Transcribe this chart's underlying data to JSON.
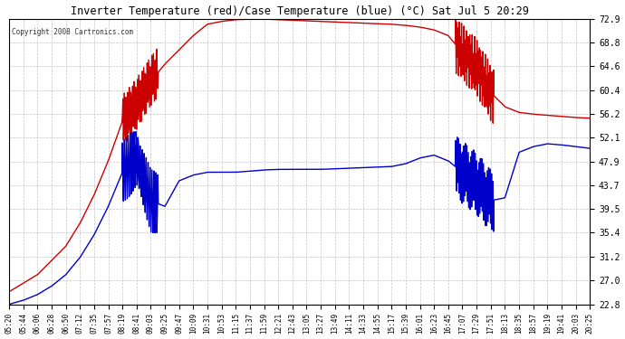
{
  "title": "Inverter Temperature (red)/Case Temperature (blue) (°C) Sat Jul 5 20:29",
  "copyright": "Copyright 2008 Cartronics.com",
  "background_color": "#ffffff",
  "plot_bg_color": "#ffffff",
  "grid_color": "#bbbbbb",
  "red_color": "#cc0000",
  "blue_color": "#0000cc",
  "ylim": [
    22.8,
    72.9
  ],
  "yticks": [
    22.8,
    27.0,
    31.2,
    35.4,
    39.5,
    43.7,
    47.9,
    52.1,
    56.2,
    60.4,
    64.6,
    68.8,
    72.9
  ],
  "xtick_labels": [
    "05:20",
    "05:44",
    "06:06",
    "06:28",
    "06:50",
    "07:12",
    "07:35",
    "07:57",
    "08:19",
    "08:41",
    "09:03",
    "09:25",
    "09:47",
    "10:09",
    "10:31",
    "10:53",
    "11:15",
    "11:37",
    "11:59",
    "12:21",
    "12:43",
    "13:05",
    "13:27",
    "13:49",
    "14:11",
    "14:33",
    "14:55",
    "15:17",
    "15:39",
    "16:01",
    "16:23",
    "16:45",
    "17:07",
    "17:29",
    "17:51",
    "18:13",
    "18:35",
    "18:57",
    "19:19",
    "19:41",
    "20:03",
    "20:25"
  ],
  "line_width": 1.0
}
